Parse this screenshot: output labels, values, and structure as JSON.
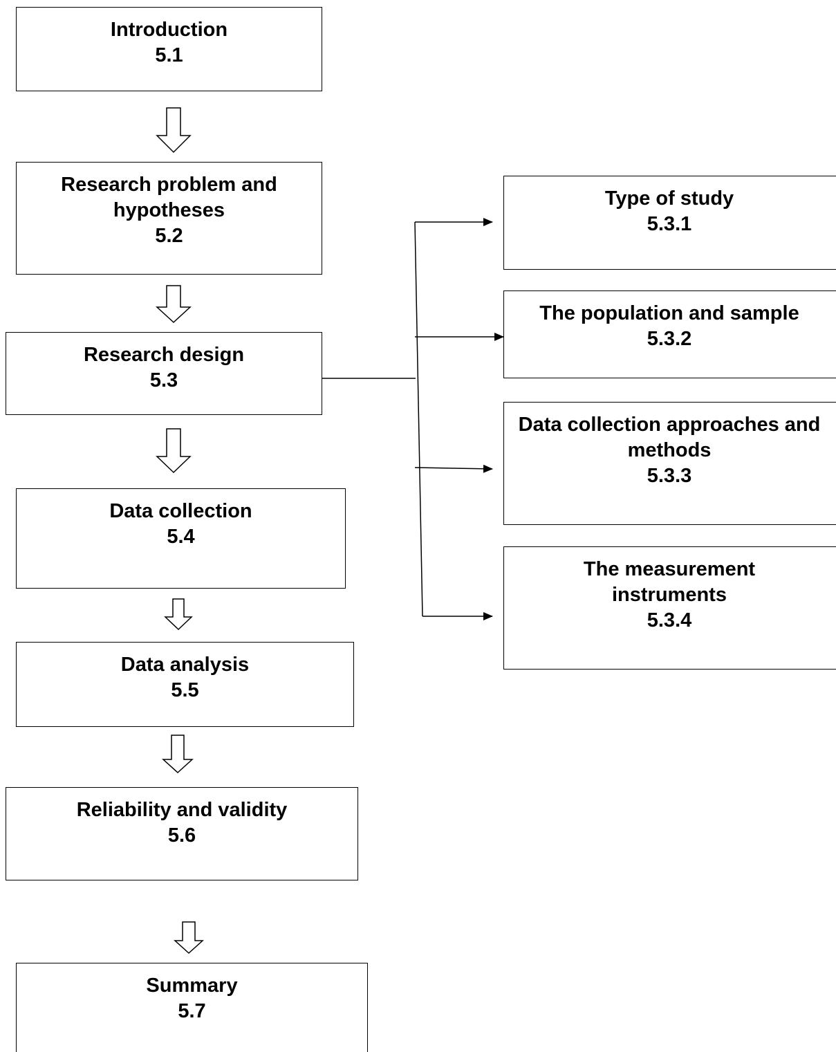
{
  "main_flow": [
    {
      "key": "introduction",
      "title": "Introduction",
      "number": "5.1"
    },
    {
      "key": "research-problem",
      "title": "Research problem and hypotheses",
      "number": "5.2"
    },
    {
      "key": "research-design",
      "title": "Research design",
      "number": "5.3"
    },
    {
      "key": "data-collection",
      "title": "Data collection",
      "number": "5.4"
    },
    {
      "key": "data-analysis",
      "title": "Data analysis",
      "number": "5.5"
    },
    {
      "key": "reliability-validity",
      "title": "Reliability and validity",
      "number": "5.6"
    },
    {
      "key": "summary",
      "title": "Summary",
      "number": "5.7"
    }
  ],
  "sub_flow": [
    {
      "key": "type-of-study",
      "title": "Type of study",
      "number": "5.3.1"
    },
    {
      "key": "population-sample",
      "title": "The population and sample",
      "number": "5.3.2"
    },
    {
      "key": "data-collection-approaches",
      "title": "Data collection approaches and methods",
      "number": "5.3.3"
    },
    {
      "key": "measurement-instruments",
      "title": "The measurement instruments",
      "number": "5.3.4"
    }
  ],
  "colors": {
    "stroke": "#000000",
    "background": "#ffffff"
  },
  "icons": {
    "down_arrow": "hollow-down-arrow-icon",
    "connector_arrow": "solid-arrowhead-icon"
  }
}
